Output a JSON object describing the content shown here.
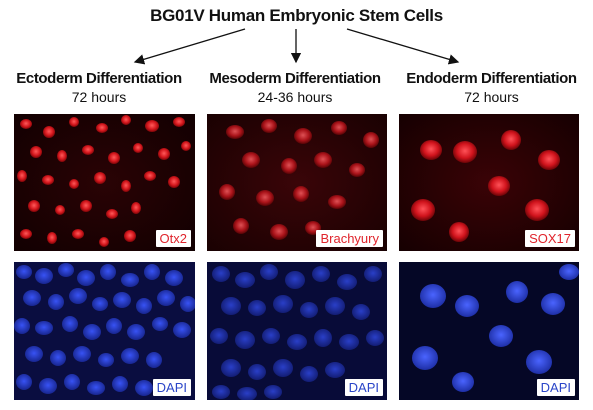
{
  "title": "BG01V Human Embryonic Stem Cells",
  "columns": [
    {
      "name": "Ectoderm Differentiation",
      "time": "72 hours",
      "top_label": "Otx2",
      "bottom_label": "DAPI"
    },
    {
      "name": "Mesoderm Differentiation",
      "time": "24-36 hours",
      "top_label": "Brachyury",
      "bottom_label": "DAPI"
    },
    {
      "name": "Endoderm Differentiation",
      "time": "72 hours",
      "top_label": "SOX17",
      "bottom_label": "DAPI"
    }
  ],
  "colors": {
    "red_stain": "#e0242c",
    "blue_stain": "#2a45c8",
    "panel_background": "#0a0000"
  }
}
